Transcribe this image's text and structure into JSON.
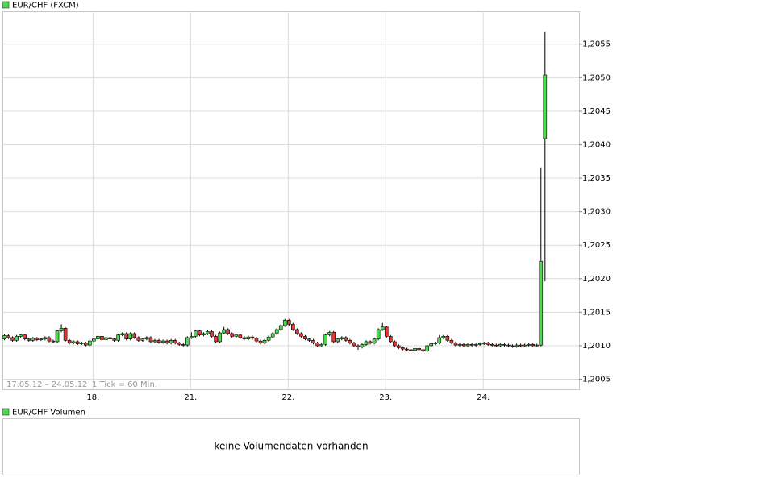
{
  "chart_data": {
    "type": "candlestick",
    "legend": "EUR/CHF (FXCM)",
    "annotations": [
      "17.05.12 – 24.05.12",
      "1 Tick = 60 Min."
    ],
    "up_color": "#4cd94c",
    "down_color": "#e03c3c",
    "grid": true,
    "categories": [
      null,
      null,
      null,
      null,
      null,
      null,
      null,
      null,
      null,
      null,
      null,
      null,
      null,
      null,
      null,
      null,
      null,
      null,
      null,
      null,
      null,
      null,
      "18.",
      null,
      null,
      null,
      null,
      null,
      null,
      null,
      null,
      null,
      null,
      null,
      null,
      null,
      null,
      null,
      null,
      null,
      null,
      null,
      null,
      null,
      null,
      null,
      "21.",
      null,
      null,
      null,
      null,
      null,
      null,
      null,
      null,
      null,
      null,
      null,
      null,
      null,
      null,
      null,
      null,
      null,
      null,
      null,
      null,
      null,
      null,
      null,
      "22.",
      null,
      null,
      null,
      null,
      null,
      null,
      null,
      null,
      null,
      null,
      null,
      null,
      null,
      null,
      null,
      null,
      null,
      null,
      null,
      null,
      null,
      null,
      null,
      "23.",
      null,
      null,
      null,
      null,
      null,
      null,
      null,
      null,
      null,
      null,
      null,
      null,
      null,
      null,
      null,
      null,
      null,
      null,
      null,
      null,
      null,
      null,
      null,
      "24.",
      null,
      null,
      null,
      null,
      null,
      null,
      null,
      null,
      null,
      null,
      null,
      null,
      null,
      null,
      null
    ],
    "series": [
      {
        "name": "EUR/CHF (FXCM)",
        "open": [
          1.2011,
          1.20115,
          1.20112,
          1.20108,
          1.20114,
          1.20116,
          1.2011,
          1.20108,
          1.20111,
          1.20109,
          1.2011,
          1.20112,
          1.20107,
          1.20106,
          1.20122,
          1.20126,
          1.20108,
          1.20104,
          1.20106,
          1.20103,
          1.20104,
          1.20101,
          1.20107,
          1.2011,
          1.20114,
          1.20109,
          1.20112,
          1.2011,
          1.20108,
          1.20116,
          1.20118,
          1.2011,
          1.20118,
          1.20112,
          1.20108,
          1.2011,
          1.20112,
          1.20106,
          1.20108,
          1.20105,
          1.20107,
          1.20104,
          1.20108,
          1.20104,
          1.20102,
          1.20101,
          1.20112,
          1.20114,
          1.20122,
          1.20116,
          1.20118,
          1.20121,
          1.20114,
          1.20106,
          1.20119,
          1.20124,
          1.20118,
          1.20114,
          1.20116,
          1.20112,
          1.2011,
          1.20113,
          1.20111,
          1.20107,
          1.20104,
          1.20108,
          1.20113,
          1.20118,
          1.20124,
          1.2013,
          1.20138,
          1.20132,
          1.20124,
          1.20118,
          1.20114,
          1.2011,
          1.20108,
          1.20104,
          1.201,
          1.20102,
          1.20116,
          1.2012,
          1.20106,
          1.2011,
          1.20112,
          1.20108,
          1.20104,
          1.201,
          1.20098,
          1.20102,
          1.20106,
          1.20104,
          1.2011,
          1.20124,
          1.20128,
          1.20114,
          1.20106,
          1.201,
          1.20097,
          1.20095,
          1.20094,
          1.20093,
          1.20096,
          1.20094,
          1.20092,
          1.201,
          1.20103,
          1.20104,
          1.20112,
          1.20114,
          1.20108,
          1.20104,
          1.20101,
          1.20102,
          1.201,
          1.20102,
          1.20101,
          1.20102,
          1.20103,
          1.20104,
          1.20102,
          1.20101,
          1.201,
          1.20102,
          1.20101,
          1.201,
          1.20099,
          1.20101,
          1.201,
          1.20101,
          1.20102,
          1.201,
          1.20101,
          1.20409
        ],
        "high": [
          1.20117,
          1.20117,
          1.20114,
          1.20116,
          1.20118,
          1.20118,
          1.20112,
          1.20113,
          1.20113,
          1.20112,
          1.20114,
          1.20114,
          1.20109,
          1.20124,
          1.20132,
          1.20128,
          1.2011,
          1.20108,
          1.20108,
          1.20106,
          1.20106,
          1.20109,
          1.20112,
          1.20116,
          1.20116,
          1.20114,
          1.20114,
          1.20112,
          1.20118,
          1.2012,
          1.2012,
          1.2012,
          1.2012,
          1.20114,
          1.20112,
          1.20114,
          1.20114,
          1.2011,
          1.2011,
          1.20109,
          1.20109,
          1.2011,
          1.2011,
          1.20106,
          1.20104,
          1.20114,
          1.2012,
          1.20124,
          1.20124,
          1.2012,
          1.20123,
          1.20123,
          1.20116,
          1.20121,
          1.20128,
          1.20126,
          1.2012,
          1.20118,
          1.20118,
          1.20114,
          1.20115,
          1.20115,
          1.20113,
          1.20109,
          1.2011,
          1.20115,
          1.2012,
          1.20126,
          1.20132,
          1.2014,
          1.2014,
          1.20134,
          1.20126,
          1.2012,
          1.20116,
          1.20112,
          1.2011,
          1.20106,
          1.20104,
          1.20118,
          1.20122,
          1.20122,
          1.20112,
          1.20114,
          1.20114,
          1.2011,
          1.20106,
          1.20102,
          1.20104,
          1.20108,
          1.20108,
          1.20112,
          1.20126,
          1.20134,
          1.2013,
          1.20116,
          1.20108,
          1.20102,
          1.20099,
          1.20097,
          1.20096,
          1.20098,
          1.20098,
          1.20096,
          1.20102,
          1.20105,
          1.20106,
          1.20116,
          1.20116,
          1.20116,
          1.2011,
          1.20106,
          1.20104,
          1.20104,
          1.20104,
          1.20104,
          1.20104,
          1.20105,
          1.20106,
          1.20106,
          1.20104,
          1.20103,
          1.20104,
          1.20104,
          1.20103,
          1.20102,
          1.20103,
          1.20103,
          1.20103,
          1.20104,
          1.20104,
          1.20103,
          1.20366,
          1.20568
        ],
        "low": [
          1.20108,
          1.2011,
          1.20106,
          1.20106,
          1.20112,
          1.20108,
          1.20106,
          1.20106,
          1.20107,
          1.20107,
          1.20108,
          1.20105,
          1.20104,
          1.20104,
          1.2012,
          1.20106,
          1.20102,
          1.20102,
          1.20101,
          1.20101,
          1.20099,
          1.20099,
          1.20105,
          1.20108,
          1.20107,
          1.20107,
          1.20108,
          1.20106,
          1.20106,
          1.20114,
          1.20108,
          1.20108,
          1.2011,
          1.20106,
          1.20106,
          1.20108,
          1.20104,
          1.20104,
          1.20103,
          1.20103,
          1.20102,
          1.20102,
          1.20102,
          1.201,
          1.20099,
          1.20099,
          1.2011,
          1.20112,
          1.20114,
          1.20114,
          1.20116,
          1.20112,
          1.20104,
          1.20104,
          1.20117,
          1.20116,
          1.20112,
          1.20112,
          1.2011,
          1.20108,
          1.20108,
          1.20109,
          1.20105,
          1.20102,
          1.20102,
          1.20106,
          1.20111,
          1.20116,
          1.20122,
          1.20128,
          1.2013,
          1.20122,
          1.20116,
          1.20112,
          1.20108,
          1.20106,
          1.20102,
          1.20098,
          1.20098,
          1.201,
          1.20114,
          1.20104,
          1.20104,
          1.20108,
          1.20106,
          1.20102,
          1.20098,
          1.20094,
          1.20096,
          1.201,
          1.20102,
          1.20102,
          1.20108,
          1.20122,
          1.20112,
          1.20104,
          1.20098,
          1.20095,
          1.20093,
          1.20092,
          1.20091,
          1.20091,
          1.20092,
          1.2009,
          1.2009,
          1.20098,
          1.20101,
          1.20102,
          1.2011,
          1.20106,
          1.20102,
          1.20099,
          1.20099,
          1.20098,
          1.20098,
          1.20099,
          1.20099,
          1.201,
          1.20101,
          1.201,
          1.20099,
          1.20098,
          1.20098,
          1.20099,
          1.20098,
          1.20097,
          1.20097,
          1.20098,
          1.20098,
          1.20099,
          1.20098,
          1.20098,
          1.20099,
          1.20196
        ],
        "close": [
          1.20115,
          1.20112,
          1.20108,
          1.20114,
          1.20116,
          1.2011,
          1.20108,
          1.20111,
          1.20109,
          1.2011,
          1.20112,
          1.20107,
          1.20106,
          1.20122,
          1.20126,
          1.20108,
          1.20104,
          1.20106,
          1.20103,
          1.20104,
          1.20101,
          1.20107,
          1.2011,
          1.20114,
          1.20109,
          1.20112,
          1.2011,
          1.20108,
          1.20116,
          1.20118,
          1.2011,
          1.20118,
          1.20112,
          1.20108,
          1.2011,
          1.20112,
          1.20106,
          1.20108,
          1.20105,
          1.20107,
          1.20104,
          1.20108,
          1.20104,
          1.20102,
          1.20101,
          1.20112,
          1.20114,
          1.20122,
          1.20116,
          1.20118,
          1.20121,
          1.20114,
          1.20106,
          1.20119,
          1.20124,
          1.20118,
          1.20114,
          1.20116,
          1.20112,
          1.2011,
          1.20113,
          1.20111,
          1.20107,
          1.20104,
          1.20108,
          1.20113,
          1.20118,
          1.20124,
          1.2013,
          1.20138,
          1.20132,
          1.20124,
          1.20118,
          1.20114,
          1.2011,
          1.20108,
          1.20104,
          1.201,
          1.20102,
          1.20116,
          1.2012,
          1.20106,
          1.2011,
          1.20112,
          1.20108,
          1.20104,
          1.201,
          1.20098,
          1.20102,
          1.20106,
          1.20104,
          1.2011,
          1.20124,
          1.20128,
          1.20114,
          1.20106,
          1.201,
          1.20097,
          1.20095,
          1.20094,
          1.20093,
          1.20096,
          1.20094,
          1.20092,
          1.201,
          1.20103,
          1.20104,
          1.20112,
          1.20114,
          1.20108,
          1.20104,
          1.20101,
          1.20102,
          1.201,
          1.20102,
          1.20101,
          1.20102,
          1.20103,
          1.20104,
          1.20102,
          1.20101,
          1.201,
          1.20102,
          1.20101,
          1.201,
          1.20099,
          1.20101,
          1.201,
          1.20101,
          1.20102,
          1.201,
          1.20101,
          1.20226,
          1.20504
        ]
      }
    ],
    "ylim": [
      1.20035,
      1.20599
    ],
    "yticks": [
      {
        "value": 1.2005,
        "label": "1,2005"
      },
      {
        "value": 1.201,
        "label": "1,2010"
      },
      {
        "value": 1.2015,
        "label": "1,2015"
      },
      {
        "value": 1.202,
        "label": "1,2020"
      },
      {
        "value": 1.2025,
        "label": "1,2025"
      },
      {
        "value": 1.203,
        "label": "1,2030"
      },
      {
        "value": 1.2035,
        "label": "1,2035"
      },
      {
        "value": 1.204,
        "label": "1,2040"
      },
      {
        "value": 1.2045,
        "label": "1,2045"
      },
      {
        "value": 1.205,
        "label": "1,2050"
      },
      {
        "value": 1.2055,
        "label": "1,2055"
      }
    ]
  },
  "volume_panel": {
    "legend": "EUR/CHF Volumen",
    "message": "keine Volumendaten vorhanden"
  }
}
